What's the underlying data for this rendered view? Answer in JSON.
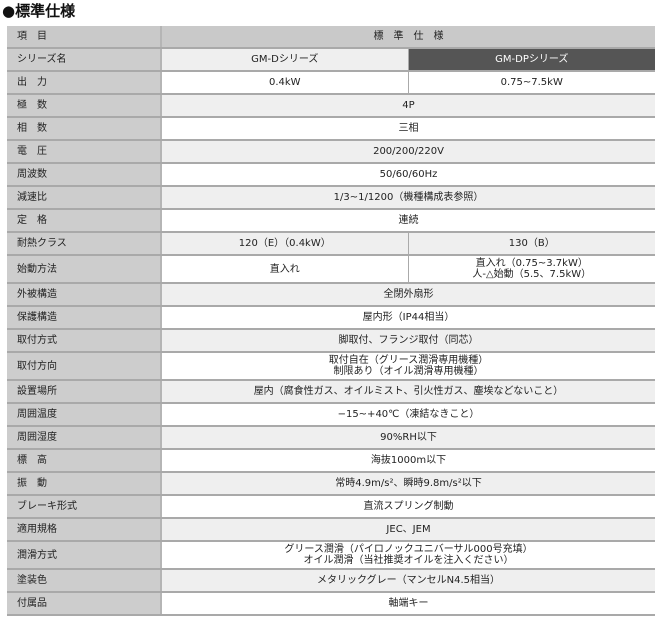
{
  "title": "●標準仕様",
  "header": {
    "item": "項　目",
    "spec": "標　準　仕　様"
  },
  "series": {
    "label": "シリーズ名",
    "d": "GM-Dシリーズ",
    "dp": "GM-DPシリーズ",
    "dp_color": "#555555"
  },
  "output": {
    "label": "出　力",
    "d": "0.4kW",
    "dp": "0.75~7.5kW"
  },
  "rows1": [
    {
      "label": "極　数",
      "value": "4P"
    },
    {
      "label": "相　数",
      "value": "三相"
    },
    {
      "label": "電　圧",
      "value": "200/200/220V"
    },
    {
      "label": "周波数",
      "value": "50/60/60Hz"
    },
    {
      "label": "減速比",
      "value": "1/3~1/1200（機種構成表参照）"
    },
    {
      "label": "定　格",
      "value": "連続"
    }
  ],
  "heat": {
    "label": "耐熱クラス",
    "d": "120（E）（0.4kW）",
    "dp": "130（B）"
  },
  "start": {
    "label": "始動方法",
    "d": "直入れ",
    "dp1": "直入れ（0.75~3.7kW）",
    "dp2": "人-△始動（5.5、7.5kW）"
  },
  "rows2": [
    {
      "label": "外被構造",
      "value": "全閉外扇形"
    },
    {
      "label": "保護構造",
      "value": "屋内形（IP44相当）"
    },
    {
      "label": "取付方式",
      "value": "脚取付、フランジ取付（同芯）"
    }
  ],
  "direction": {
    "label": "取付方向",
    "line1": "取付自在（グリース潤滑専用機種）",
    "line2": "制限あり（オイル潤滑専用機種）"
  },
  "rows3": [
    {
      "label": "設置場所",
      "value": "屋内（腐食性ガス、オイルミスト、引火性ガス、塵埃などないこと）"
    },
    {
      "label": "周囲温度",
      "value": "−15~+40℃（凍結なきこと）"
    },
    {
      "label": "周囲湿度",
      "value": "90%RH以下"
    },
    {
      "label": "標　高",
      "value": "海抜1000m以下"
    },
    {
      "label": "振　動",
      "value": "常時4.9m/s²、瞬時9.8m/s²以下"
    },
    {
      "label": "ブレーキ形式",
      "value": "直流スプリング制動"
    },
    {
      "label": "適用規格",
      "value": "JEC、JEM"
    }
  ],
  "lube": {
    "label": "潤滑方式",
    "line1": "グリース潤滑（パイロノックユニバーサル000号充填）",
    "line2": "オイル潤滑（当社推奨オイルを注入ください）"
  },
  "rows4": [
    {
      "label": "塗装色",
      "value": "メタリックグレー（マンセルN4.5相当）"
    },
    {
      "label": "付属品",
      "value": "軸端キー"
    }
  ]
}
